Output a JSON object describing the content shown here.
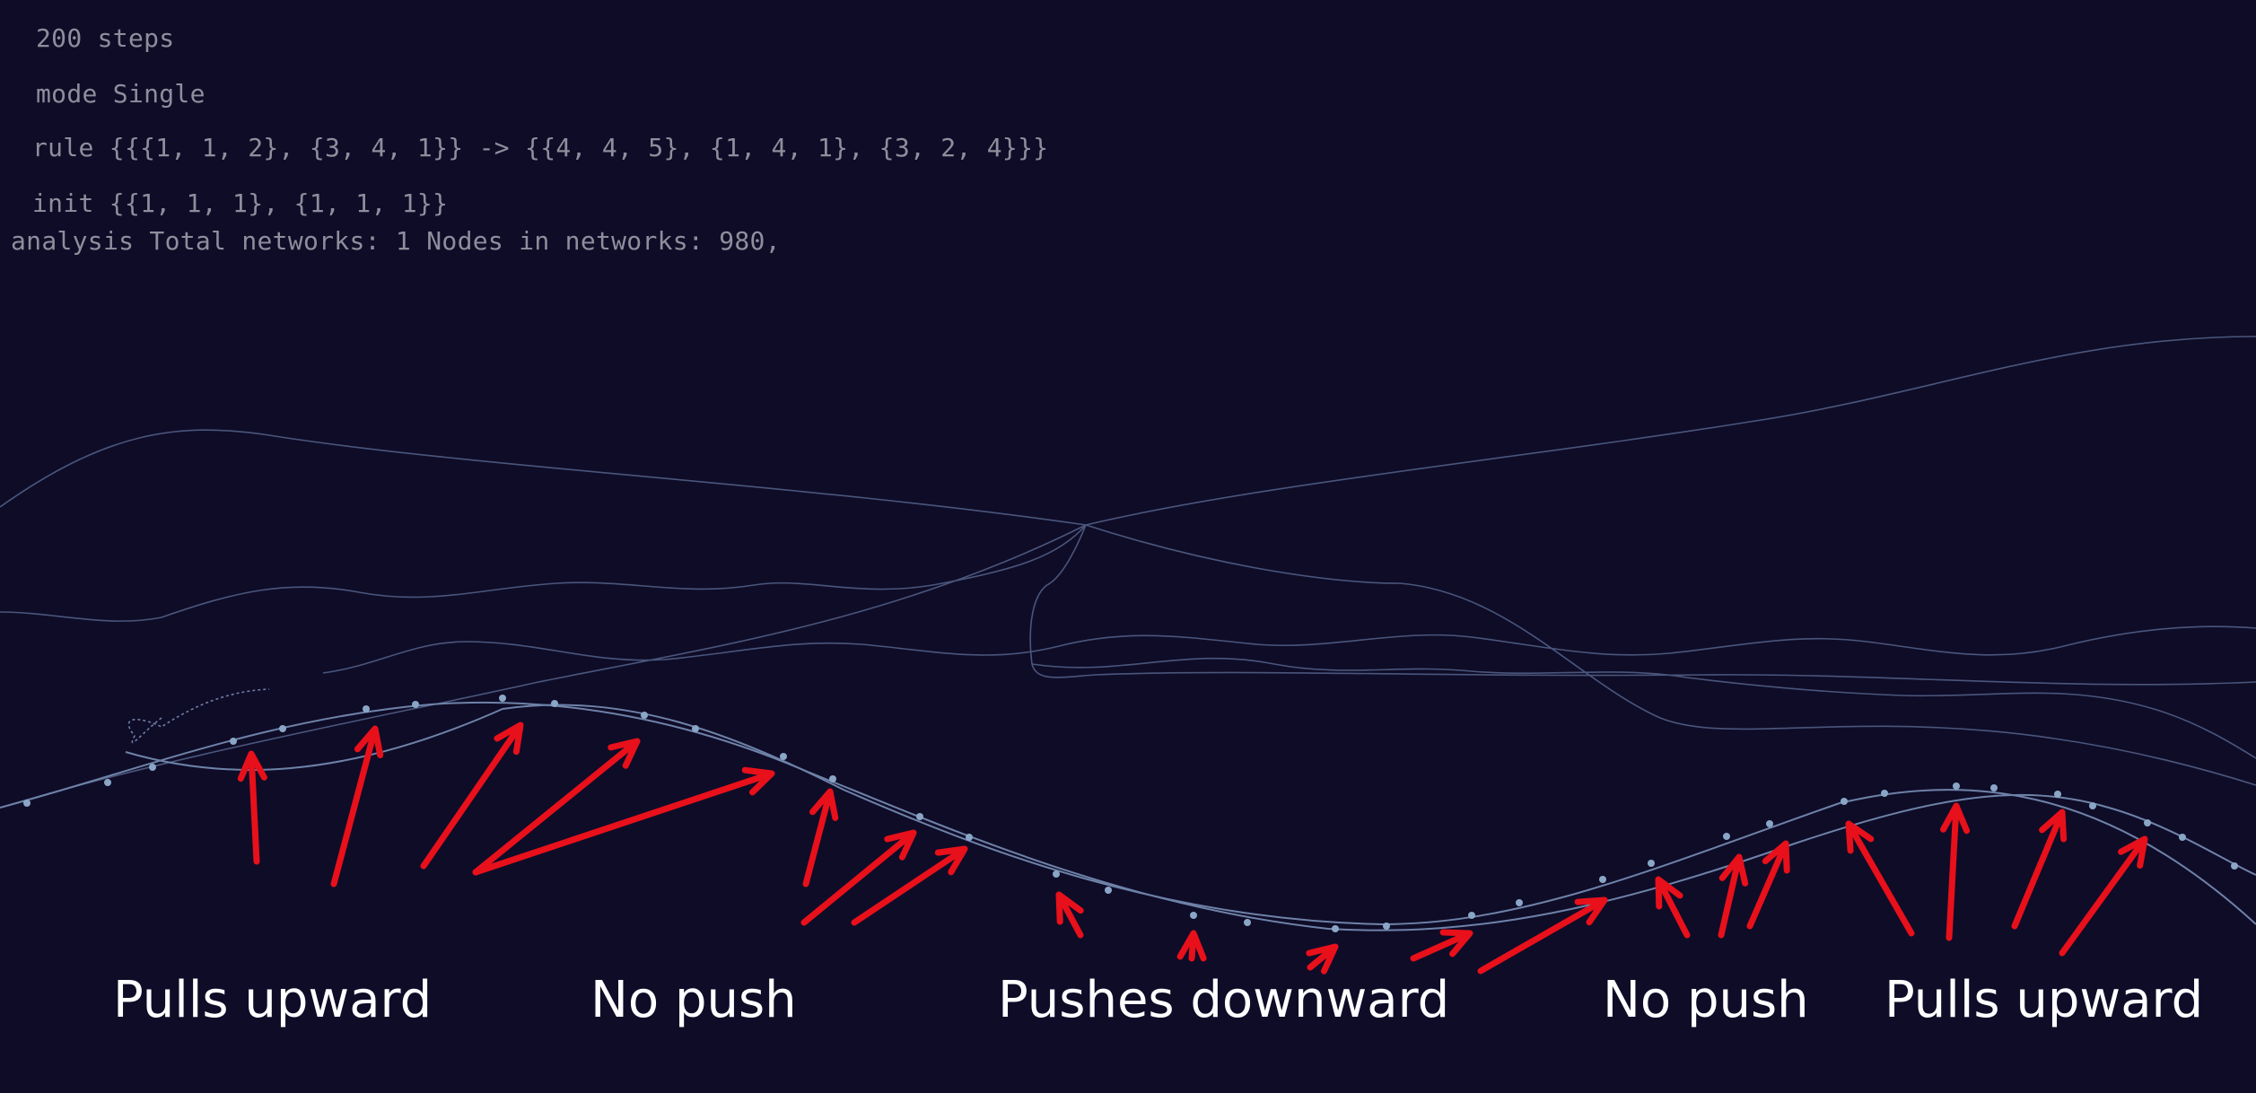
{
  "info": {
    "steps": "200 steps",
    "mode": "mode Single",
    "rule": "rule {{{1, 1, 2}, {3, 4, 1}} -> {{4, 4, 5}, {1, 4, 1}, {3, 2, 4}}}",
    "init": "init {{1, 1, 1}, {1, 1, 1}}",
    "analysis": "analysis Total networks: 1 Nodes in networks: 980,"
  },
  "captions": [
    "Pulls upward",
    "No push",
    "Pushes downward",
    "No push",
    "Pulls upward"
  ],
  "colors": {
    "background": "#0f0c28",
    "info_text": "#8e8e9c",
    "network_line": "#5a6a8c",
    "node": "#7e9bbd",
    "arrow": "#e8101a",
    "caption": "#ffffff"
  }
}
